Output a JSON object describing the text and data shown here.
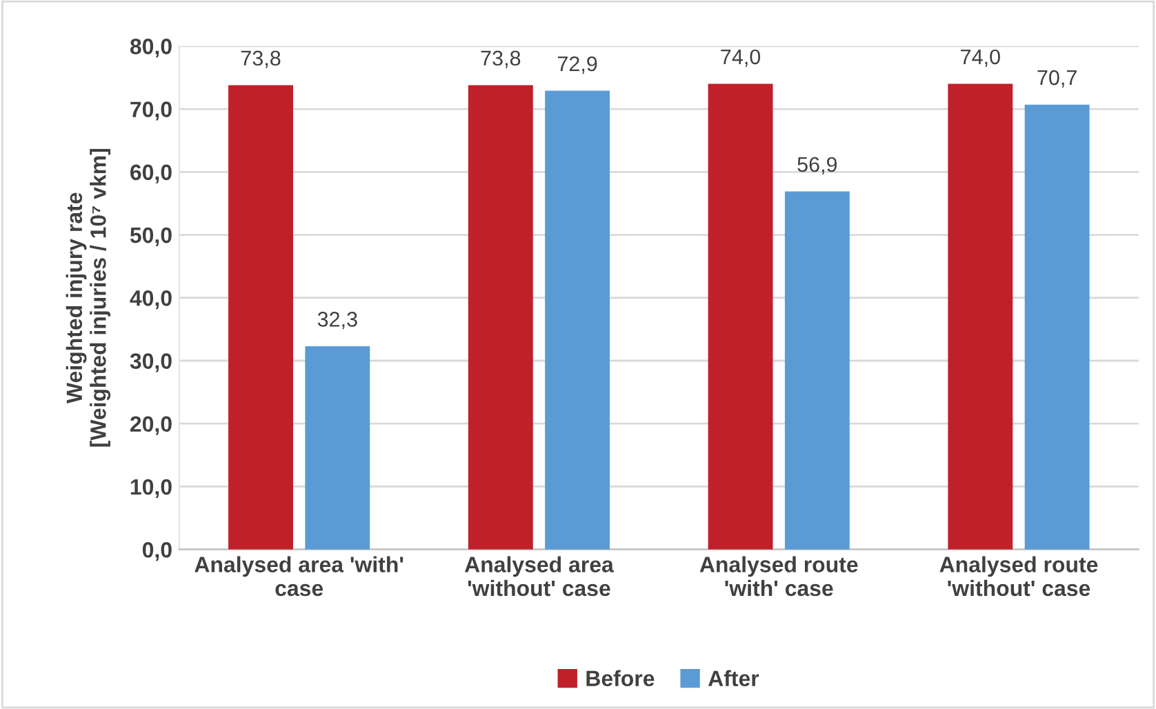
{
  "chart_data": {
    "type": "bar",
    "ylabel": "Weighted injury rate\n[Weighted injuries / 10⁷ vkm]",
    "categories": [
      "Analysed area 'with'\ncase",
      "Analysed area\n'without' case",
      "Analysed route\n'with' case",
      "Analysed route\n'without' case"
    ],
    "series": [
      {
        "name": "Before",
        "color": "#c0202a",
        "values": [
          73.8,
          73.8,
          74.0,
          74.0
        ],
        "value_labels": [
          "73,8",
          "73,8",
          "74,0",
          "74,0"
        ]
      },
      {
        "name": "After",
        "color": "#5b9bd5",
        "values": [
          32.3,
          72.9,
          56.9,
          70.7
        ],
        "value_labels": [
          "32,3",
          "72,9",
          "56,9",
          "70,7"
        ]
      }
    ],
    "ylim": [
      0,
      80
    ],
    "yticks": [
      {
        "value": 0,
        "label": "0,0"
      },
      {
        "value": 10,
        "label": "10,0"
      },
      {
        "value": 20,
        "label": "20,0"
      },
      {
        "value": 30,
        "label": "30,0"
      },
      {
        "value": 40,
        "label": "40,0"
      },
      {
        "value": 50,
        "label": "50,0"
      },
      {
        "value": 60,
        "label": "60,0"
      },
      {
        "value": 70,
        "label": "70,0"
      },
      {
        "value": 80,
        "label": "80,0"
      }
    ],
    "grid": "y",
    "legend": "bottom"
  }
}
